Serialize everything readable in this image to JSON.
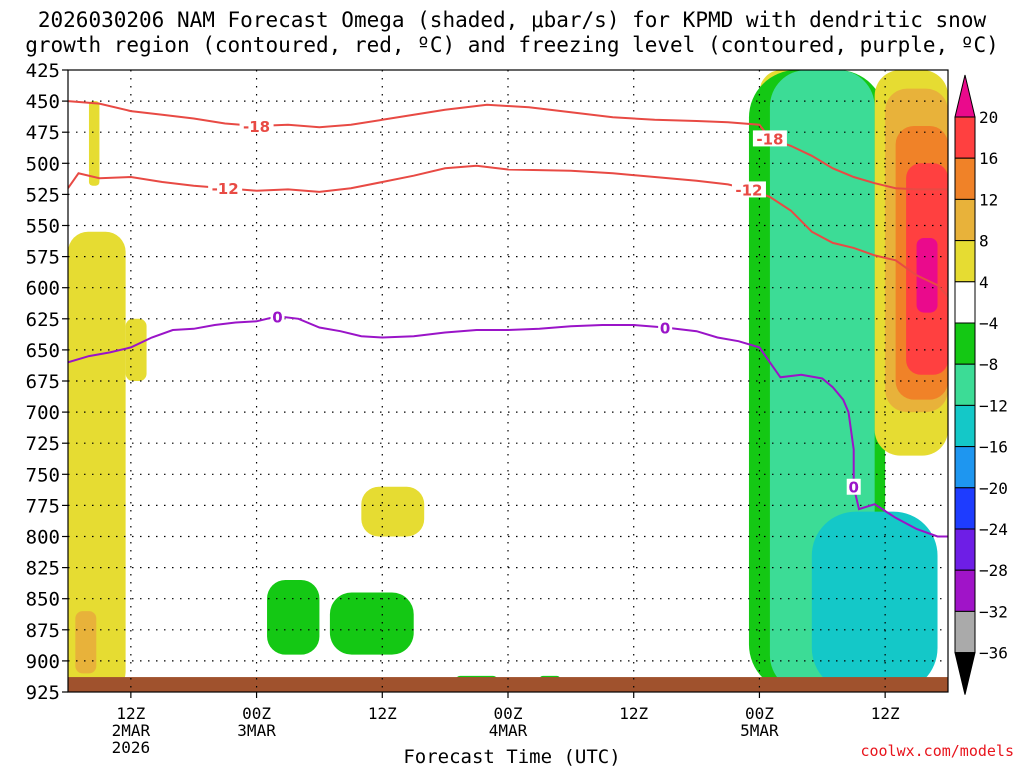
{
  "title_line1": "2026030206 NAM Forecast Omega (shaded, μbar/s) for KPMD with dendritic snow",
  "title_line2": "growth region (contoured, red, ºC) and freezing level (contoured, purple, ºC)",
  "credit": "coolwx.com/models",
  "chart_data": {
    "type": "heatmap",
    "title": "2026030206 NAM Forecast Omega (shaded, μbar/s) for KPMD with dendritic snow growth region (contoured, red, ºC) and freezing level (contoured, purple, ºC)",
    "xlabel": "Forecast Time (UTC)",
    "ylabel": "",
    "x_units": "forecast hour from 2026-03-02 06Z",
    "xlim": [
      0,
      84
    ],
    "y_units": "hPa",
    "ylim": [
      925,
      425
    ],
    "y_ticks": [
      425,
      450,
      475,
      500,
      525,
      550,
      575,
      600,
      625,
      650,
      675,
      700,
      725,
      750,
      775,
      800,
      825,
      850,
      875,
      900,
      925
    ],
    "x_ticks": [
      {
        "hour": 6,
        "lines": [
          "12Z",
          "2MAR",
          "2026"
        ]
      },
      {
        "hour": 18,
        "lines": [
          "00Z",
          "3MAR"
        ]
      },
      {
        "hour": 30,
        "lines": [
          "12Z"
        ]
      },
      {
        "hour": 42,
        "lines": [
          "00Z",
          "4MAR"
        ]
      },
      {
        "hour": 54,
        "lines": [
          "12Z"
        ]
      },
      {
        "hour": 66,
        "lines": [
          "00Z",
          "5MAR"
        ]
      },
      {
        "hour": 78,
        "lines": [
          "12Z"
        ]
      }
    ],
    "colorbar": {
      "labels": [
        "20",
        "16",
        "12",
        "8",
        "4",
        "−4",
        "−8",
        "−12",
        "−16",
        "−20",
        "−24",
        "−28",
        "−32",
        "−36"
      ],
      "colors": [
        "#ea0a8c",
        "#ff4040",
        "#f08228",
        "#e8b23a",
        "#e6dc32",
        "#ffffff",
        "#14c814",
        "#3cdc96",
        "#14c8c8",
        "#1e96f0",
        "#1e3cff",
        "#6e1ee6",
        "#a014c8",
        "#aaaaaa",
        "#000000"
      ]
    },
    "contours": [
      {
        "label": "-18",
        "color": "#e84a44",
        "points": [
          [
            0,
            450
          ],
          [
            3,
            452
          ],
          [
            6,
            458
          ],
          [
            9,
            461
          ],
          [
            12,
            464
          ],
          [
            15,
            468
          ],
          [
            18,
            470
          ],
          [
            21,
            469
          ],
          [
            24,
            471
          ],
          [
            27,
            469
          ],
          [
            30,
            465
          ],
          [
            33,
            461
          ],
          [
            36,
            457
          ],
          [
            40,
            453
          ],
          [
            44,
            455
          ],
          [
            48,
            459
          ],
          [
            52,
            463
          ],
          [
            56,
            465
          ],
          [
            60,
            466
          ],
          [
            63,
            467
          ],
          [
            66,
            469
          ],
          [
            67,
            480
          ],
          [
            69,
            486
          ],
          [
            71,
            494
          ],
          [
            73,
            504
          ],
          [
            75,
            511
          ],
          [
            77,
            516
          ],
          [
            79,
            520
          ],
          [
            81,
            521
          ],
          [
            84,
            521
          ]
        ]
      },
      {
        "label": "-12",
        "color": "#e84a44",
        "points": [
          [
            0,
            520
          ],
          [
            1,
            508
          ],
          [
            3,
            512
          ],
          [
            6,
            511
          ],
          [
            9,
            515
          ],
          [
            12,
            518
          ],
          [
            15,
            520
          ],
          [
            18,
            522
          ],
          [
            21,
            521
          ],
          [
            24,
            523
          ],
          [
            27,
            520
          ],
          [
            30,
            515
          ],
          [
            33,
            510
          ],
          [
            36,
            504
          ],
          [
            39,
            502
          ],
          [
            42,
            505
          ],
          [
            48,
            506
          ],
          [
            52,
            508
          ],
          [
            56,
            511
          ],
          [
            60,
            514
          ],
          [
            63,
            517
          ],
          [
            65,
            521
          ],
          [
            67,
            527
          ],
          [
            69,
            538
          ],
          [
            71,
            555
          ],
          [
            73,
            564
          ],
          [
            75,
            568
          ],
          [
            77,
            574
          ],
          [
            79,
            578
          ],
          [
            81,
            590
          ],
          [
            83,
            598
          ],
          [
            84,
            607
          ]
        ]
      },
      {
        "label": "0",
        "color": "#9a14c8",
        "points": [
          [
            0,
            660
          ],
          [
            2,
            655
          ],
          [
            4,
            652
          ],
          [
            6,
            648
          ],
          [
            8,
            640
          ],
          [
            10,
            634
          ],
          [
            12,
            633
          ],
          [
            14,
            630
          ],
          [
            16,
            628
          ],
          [
            18,
            627
          ],
          [
            20,
            623
          ],
          [
            22,
            625
          ],
          [
            24,
            632
          ],
          [
            26,
            635
          ],
          [
            28,
            639
          ],
          [
            30,
            640
          ],
          [
            33,
            639
          ],
          [
            36,
            636
          ],
          [
            39,
            634
          ],
          [
            42,
            634
          ],
          [
            45,
            633
          ],
          [
            48,
            631
          ],
          [
            51,
            630
          ],
          [
            54,
            630
          ],
          [
            57,
            632
          ],
          [
            60,
            635
          ],
          [
            62,
            640
          ],
          [
            64,
            643
          ],
          [
            66,
            648
          ],
          [
            68,
            672
          ],
          [
            70,
            670
          ],
          [
            72,
            673
          ],
          [
            73,
            680
          ],
          [
            74,
            690
          ],
          [
            74.5,
            700
          ],
          [
            75,
            730
          ],
          [
            75,
            760
          ],
          [
            75.5,
            778
          ],
          [
            77,
            774
          ],
          [
            79,
            785
          ],
          [
            81,
            794
          ],
          [
            83,
            800
          ],
          [
            84,
            800
          ]
        ]
      }
    ],
    "shaded_regions": [
      {
        "omega_class": 4,
        "hours": [
          2.0,
          3.0
        ],
        "p": [
          450,
          518
        ]
      },
      {
        "omega_class": 4,
        "hours": [
          0,
          5.5
        ],
        "p": [
          555,
          925
        ]
      },
      {
        "omega_class": 8,
        "hours": [
          0.7,
          2.7
        ],
        "p": [
          860,
          910
        ]
      },
      {
        "omega_class": 4,
        "hours": [
          5.5,
          7.5
        ],
        "p": [
          625,
          675
        ]
      },
      {
        "omega_class": 4,
        "hours": [
          28,
          34
        ],
        "p": [
          760,
          800
        ]
      },
      {
        "omega_class": -4,
        "hours": [
          19,
          24
        ],
        "p": [
          835,
          895
        ]
      },
      {
        "omega_class": -4,
        "hours": [
          25,
          33
        ],
        "p": [
          845,
          895
        ]
      },
      {
        "omega_class": -4,
        "hours": [
          37,
          41
        ],
        "p": [
          912,
          922
        ]
      },
      {
        "omega_class": -4,
        "hours": [
          45,
          47
        ],
        "p": [
          912,
          920
        ]
      },
      {
        "omega_class": 4,
        "hours": [
          66,
          72
        ],
        "p": [
          425,
          550
        ]
      },
      {
        "omega_class": -4,
        "hours": [
          65,
          78
        ],
        "p": [
          425,
          925
        ]
      },
      {
        "omega_class": -8,
        "hours": [
          67,
          77
        ],
        "p": [
          425,
          925
        ]
      },
      {
        "omega_class": -12,
        "hours": [
          71,
          83
        ],
        "p": [
          780,
          925
        ]
      },
      {
        "omega_class": 4,
        "hours": [
          77,
          84
        ],
        "p": [
          425,
          735
        ]
      },
      {
        "omega_class": 8,
        "hours": [
          78,
          84
        ],
        "p": [
          440,
          700
        ]
      },
      {
        "omega_class": 12,
        "hours": [
          79,
          84
        ],
        "p": [
          470,
          690
        ]
      },
      {
        "omega_class": 16,
        "hours": [
          80,
          84
        ],
        "p": [
          500,
          670
        ]
      },
      {
        "omega_class": 20,
        "hours": [
          81,
          83
        ],
        "p": [
          560,
          620
        ]
      }
    ],
    "ground": {
      "color": "#a0522d",
      "p": [
        913,
        925
      ]
    }
  },
  "x_axis_label": "Forecast Time (UTC)"
}
